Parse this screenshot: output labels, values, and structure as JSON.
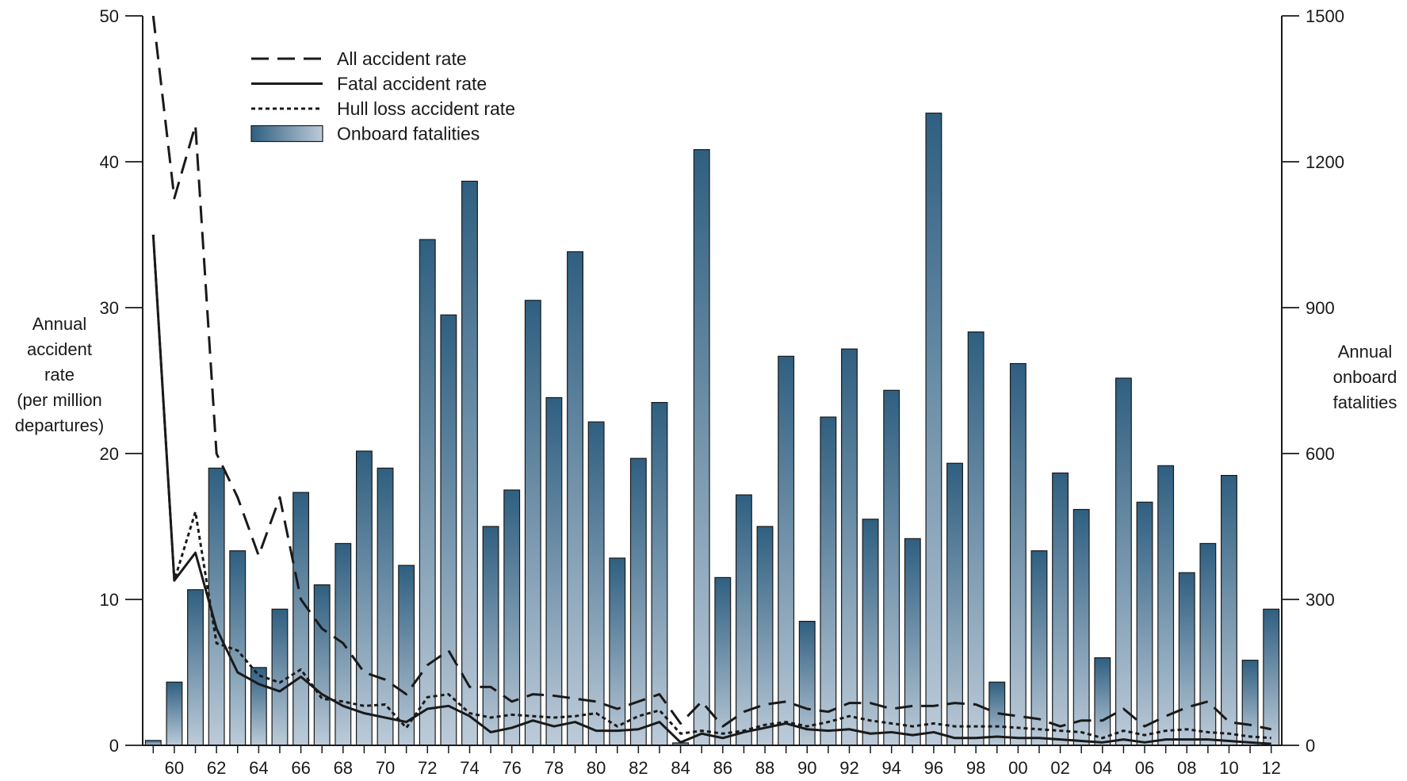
{
  "chart_data": {
    "type": "bar",
    "years": [
      "59",
      "60",
      "61",
      "62",
      "63",
      "64",
      "65",
      "66",
      "67",
      "68",
      "69",
      "70",
      "71",
      "72",
      "73",
      "74",
      "75",
      "76",
      "77",
      "78",
      "79",
      "80",
      "81",
      "82",
      "83",
      "84",
      "85",
      "86",
      "87",
      "88",
      "89",
      "90",
      "91",
      "92",
      "93",
      "94",
      "95",
      "96",
      "97",
      "98",
      "99",
      "00",
      "01",
      "02",
      "03",
      "04",
      "05",
      "06",
      "07",
      "08",
      "09",
      "10",
      "11",
      "12"
    ],
    "x_tick_labels": [
      "60",
      "62",
      "64",
      "66",
      "68",
      "70",
      "72",
      "74",
      "76",
      "78",
      "80",
      "82",
      "84",
      "86",
      "88",
      "90",
      "92",
      "94",
      "96",
      "98",
      "00",
      "02",
      "04",
      "06",
      "08",
      "10",
      "12"
    ],
    "left_axis": {
      "label_lines": [
        "Annual",
        "accident",
        "rate",
        "(per million",
        "departures)"
      ],
      "range": [
        0,
        50
      ],
      "ticks": [
        "0",
        "10",
        "20",
        "30",
        "40",
        "50"
      ]
    },
    "right_axis": {
      "label_lines": [
        "Annual",
        "onboard",
        "fatalities"
      ],
      "range": [
        0,
        1500
      ],
      "ticks": [
        "0",
        "300",
        "600",
        "900",
        "1200",
        "1500"
      ]
    },
    "bars": {
      "name": "Onboard fatalities",
      "values": [
        10,
        130,
        320,
        570,
        400,
        160,
        280,
        520,
        330,
        415,
        605,
        570,
        370,
        1040,
        885,
        1160,
        450,
        525,
        915,
        715,
        1015,
        665,
        385,
        590,
        705,
        5,
        1225,
        345,
        515,
        450,
        800,
        255,
        675,
        815,
        465,
        730,
        425,
        1300,
        580,
        850,
        130,
        785,
        400,
        560,
        485,
        180,
        755,
        500,
        575,
        355,
        415,
        555,
        175,
        280
      ],
      "color_top": "#2f5f80",
      "color_bottom": "#bccbd9"
    },
    "series": [
      {
        "name": "All accident rate",
        "style": "dashed",
        "values": [
          50,
          37.5,
          42.5,
          20,
          17,
          13,
          17,
          10,
          8,
          7,
          5,
          4.5,
          3.5,
          5.5,
          6.5,
          4,
          4,
          3,
          3.5,
          3.4,
          3.2,
          3,
          2.5,
          3,
          3.5,
          1.5,
          3,
          1.3,
          2.3,
          2.8,
          3,
          2.5,
          2.3,
          2.9,
          2.9,
          2.5,
          2.7,
          2.7,
          2.9,
          2.8,
          2.2,
          2,
          1.8,
          1.3,
          1.7,
          1.7,
          2.5,
          1.3,
          2,
          2.6,
          3,
          1.6,
          1.4,
          1.1
        ]
      },
      {
        "name": "Fatal accident rate",
        "style": "solid",
        "values": [
          35,
          11.3,
          13.2,
          8,
          5,
          4.2,
          3.7,
          4.7,
          3.5,
          2.7,
          2.2,
          1.9,
          1.6,
          2.5,
          2.7,
          2,
          0.9,
          1.2,
          1.7,
          1.3,
          1.6,
          1,
          1,
          1.1,
          1.6,
          0.2,
          0.8,
          0.5,
          0.9,
          1.2,
          1.5,
          1.1,
          1,
          1.1,
          0.8,
          0.9,
          0.7,
          0.9,
          0.5,
          0.5,
          0.6,
          0.5,
          0.5,
          0.4,
          0.3,
          0.2,
          0.4,
          0.2,
          0.4,
          0.4,
          0.4,
          0.3,
          0.2,
          0.1
        ]
      },
      {
        "name": "Hull loss accident rate",
        "style": "dotted",
        "values": [
          35,
          11.3,
          16,
          7,
          6.5,
          4.8,
          4.3,
          5.2,
          3.2,
          3,
          2.7,
          2.8,
          1.2,
          3.3,
          3.5,
          2.2,
          1.9,
          2.1,
          2,
          1.9,
          2,
          2.2,
          1.3,
          2,
          2.4,
          0.8,
          1,
          0.8,
          1,
          1.4,
          1.6,
          1.3,
          1.6,
          2,
          1.7,
          1.5,
          1.3,
          1.5,
          1.3,
          1.3,
          1.3,
          1.2,
          1.1,
          1,
          0.9,
          0.5,
          1,
          0.7,
          1,
          1.1,
          0.9,
          0.8,
          0.6,
          0.5
        ]
      }
    ],
    "legend": {
      "placement": "top-left",
      "items": [
        "All accident rate",
        "Fatal accident rate",
        "Hull loss accident rate",
        "Onboard fatalities"
      ]
    },
    "line_color": "#1a1a1a"
  }
}
